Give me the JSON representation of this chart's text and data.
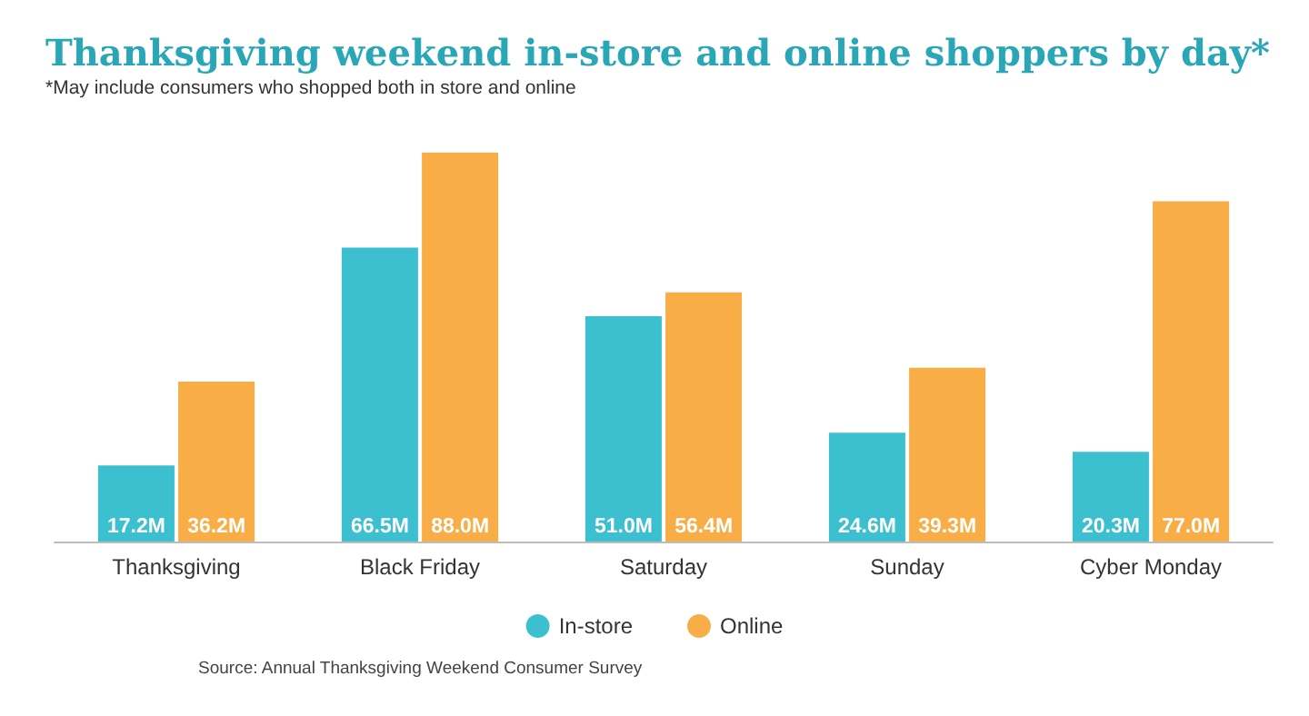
{
  "chart_data": {
    "type": "bar",
    "title": "Thanksgiving weekend in-store and online shoppers by day*",
    "subtitle": "*May include consumers who shopped both in store and online",
    "categories": [
      "Thanksgiving",
      "Black Friday",
      "Saturday",
      "Sunday",
      "Cyber Monday"
    ],
    "series": [
      {
        "name": "In-store",
        "color": "#3cbfce",
        "values": [
          17.2,
          66.5,
          51.0,
          24.6,
          20.3
        ],
        "value_labels": [
          "17.2M",
          "66.5M",
          "51.0M",
          "24.6M",
          "20.3M"
        ]
      },
      {
        "name": "Online",
        "color": "#f8ad46",
        "values": [
          36.2,
          88.0,
          56.4,
          39.3,
          77.0
        ],
        "value_labels": [
          "36.2M",
          "88.0M",
          "56.4M",
          "39.3M",
          "77.0M"
        ]
      }
    ],
    "legend": "bottom",
    "annotations": [
      "Source: Annual Thanksgiving Weekend Consumer Survey"
    ]
  }
}
